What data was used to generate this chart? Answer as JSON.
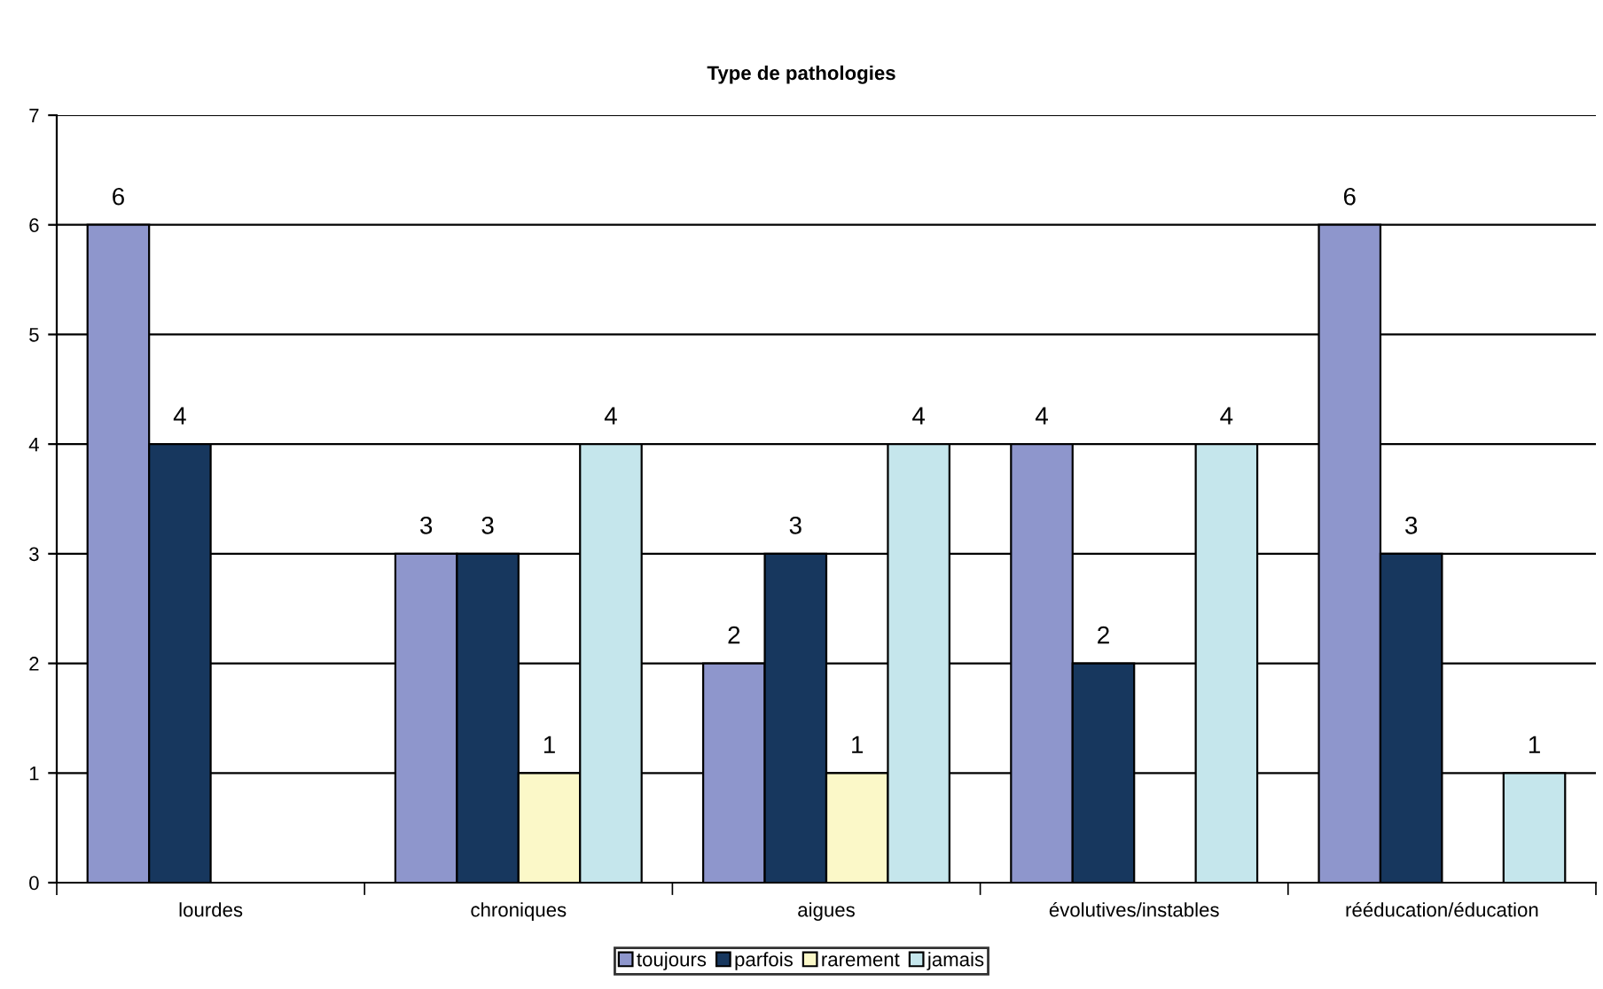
{
  "chart_data": {
    "type": "bar",
    "title": "Type de pathologies",
    "categories": [
      "lourdes",
      "chroniques",
      "aigues",
      "évolutives/instables",
      "rééducation/éducation"
    ],
    "series": [
      {
        "name": "toujours",
        "color": "#8e96cc",
        "values": [
          6,
          3,
          2,
          4,
          6
        ]
      },
      {
        "name": "parfois",
        "color": "#17375e",
        "values": [
          4,
          3,
          3,
          2,
          3
        ]
      },
      {
        "name": "rarement",
        "color": "#fbf8c8",
        "values": [
          null,
          1,
          1,
          null,
          null
        ]
      },
      {
        "name": "jamais",
        "color": "#c5e6ec",
        "values": [
          null,
          4,
          4,
          4,
          1
        ]
      }
    ],
    "ylim": [
      0,
      7
    ],
    "yticks": [
      0,
      1,
      2,
      3,
      4,
      5,
      6,
      7
    ],
    "grid": "y",
    "legend": "bottom",
    "data_labels": true
  }
}
